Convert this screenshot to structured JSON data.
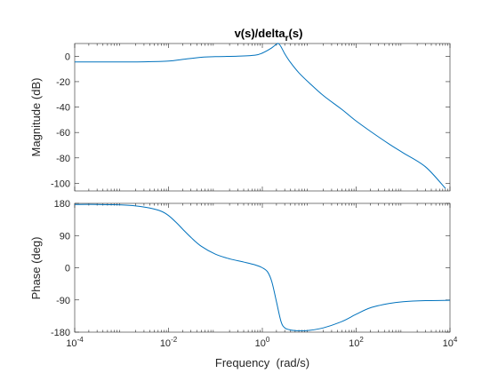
{
  "chart_data": {
    "type": "line",
    "title_main": "v(s)/delta",
    "title_sub": "r",
    "title_end": "(s)",
    "xlabel": "Frequency  (rad/s)",
    "xscale": "log",
    "xlim": [
      0.0001,
      10000
    ],
    "x_ticks": [
      0.0001,
      0.01,
      1,
      100,
      10000
    ],
    "x_tick_labels": [
      {
        "base": "10",
        "exp": "-4"
      },
      {
        "base": "10",
        "exp": "-2"
      },
      {
        "base": "10",
        "exp": "0"
      },
      {
        "base": "10",
        "exp": "2"
      },
      {
        "base": "10",
        "exp": "4"
      }
    ],
    "line_color": "#0072bd",
    "grid": false,
    "subplots": [
      {
        "name": "magnitude",
        "ylabel": "Magnitude (dB)",
        "ylim": [
          -106,
          10
        ],
        "y_ticks": [
          0,
          -20,
          -40,
          -60,
          -80,
          -100
        ],
        "y_tick_labels": [
          "0",
          "-20",
          "-40",
          "-60",
          "-80",
          "-100"
        ],
        "series": [
          {
            "x": [
              0.0001,
              0.001,
              0.003,
              0.01,
              0.02,
              0.05,
              0.1,
              0.3,
              0.7,
              1.0,
              1.5,
              2.0,
              2.2,
              2.5,
              3.0,
              4.0,
              6.0,
              10,
              20,
              50,
              100,
              200,
              500,
              1000,
              3000,
              8000
            ],
            "y": [
              -4.5,
              -4.5,
              -4.4,
              -3.8,
              -2.5,
              -0.8,
              -0.3,
              0.0,
              0.8,
              2.5,
              6.0,
              9.5,
              10.0,
              7.5,
              2.0,
              -5.0,
              -13.0,
              -21.0,
              -31.0,
              -42.0,
              -51.0,
              -59.0,
              -69.0,
              -76.0,
              -87.0,
              -104.0
            ]
          }
        ]
      },
      {
        "name": "phase",
        "ylabel": "Phase (deg)",
        "ylim": [
          -180,
          180
        ],
        "y_ticks": [
          180,
          90,
          0,
          -90,
          -180
        ],
        "y_tick_labels": [
          "180",
          "90",
          "0",
          "-90",
          "-180"
        ],
        "series": [
          {
            "x": [
              0.0001,
              0.0003,
              0.001,
              0.002,
              0.004,
              0.007,
              0.01,
              0.015,
              0.02,
              0.03,
              0.05,
              0.1,
              0.2,
              0.4,
              0.7,
              1.0,
              1.3,
              1.6,
              2.0,
              2.5,
              3.0,
              4.0,
              6.0,
              10,
              20,
              50,
              100,
              200,
              500,
              1000,
              3000,
              10000
            ],
            "y": [
              177.0,
              177.0,
              175.5,
              173.0,
              167.0,
              158.0,
              146.0,
              125.0,
              108.0,
              85.0,
              60.0,
              38.0,
              25.0,
              16.0,
              8.0,
              0.0,
              -12.0,
              -40.0,
              -95.0,
              -150.0,
              -168.0,
              -174.0,
              -176.0,
              -175.0,
              -168.0,
              -150.0,
              -130.0,
              -112.0,
              -100.0,
              -95.0,
              -92.0,
              -91.0
            ]
          }
        ]
      }
    ]
  }
}
